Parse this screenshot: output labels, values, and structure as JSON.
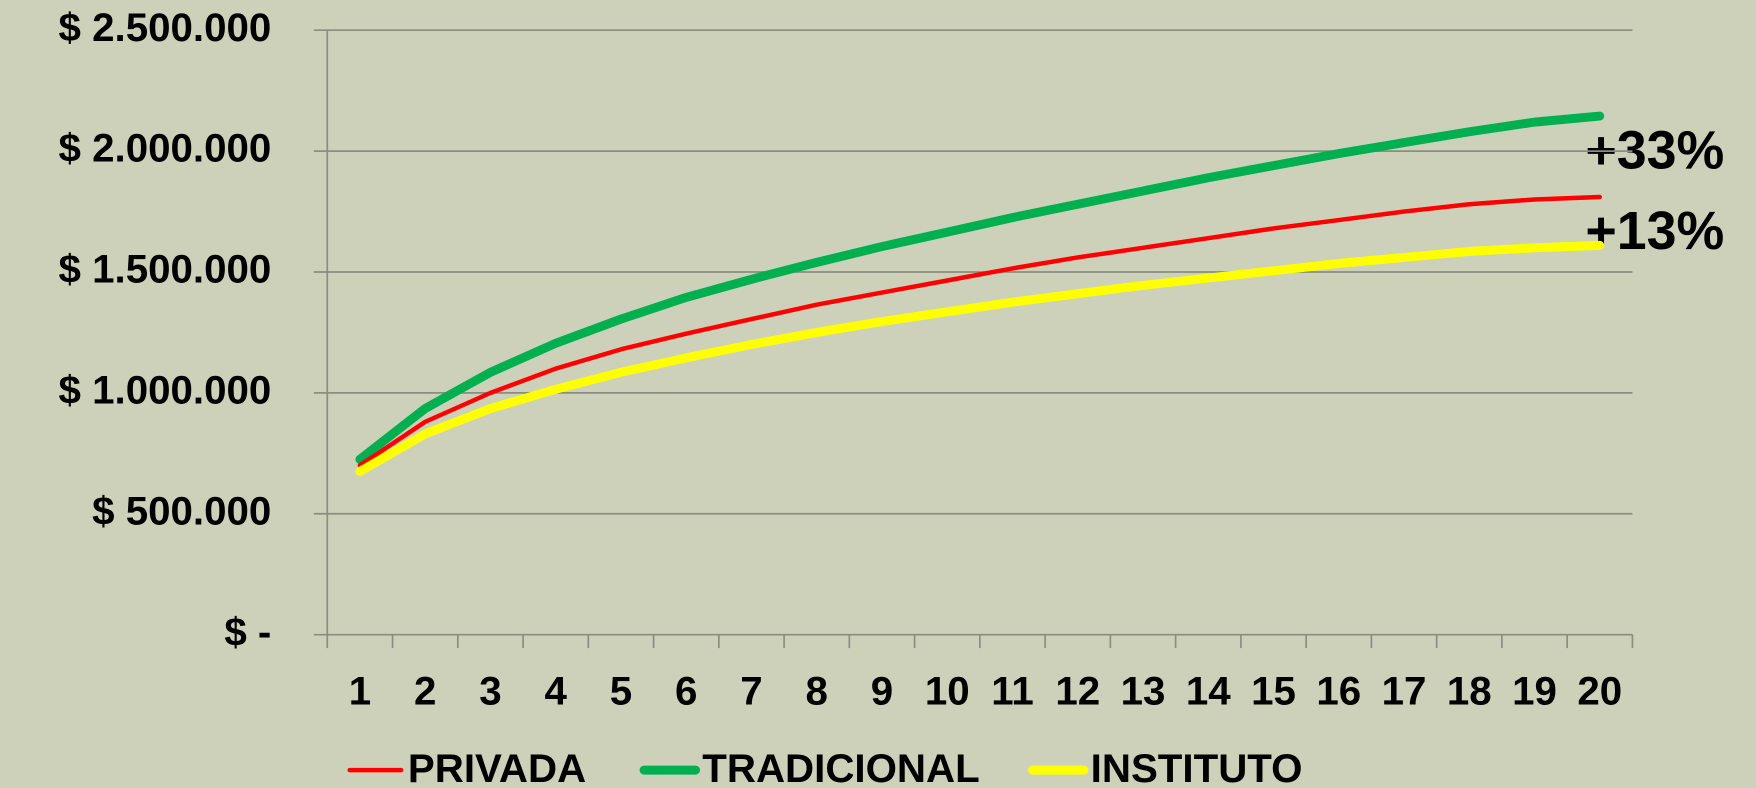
{
  "chart_data": {
    "type": "line",
    "categories": [
      "1",
      "2",
      "3",
      "4",
      "5",
      "6",
      "7",
      "8",
      "9",
      "10",
      "11",
      "12",
      "13",
      "14",
      "15",
      "16",
      "17",
      "18",
      "19",
      "20"
    ],
    "series": [
      {
        "name": "PRIVADA",
        "color": "#ff0000",
        "values": [
          700000,
          880000,
          1000000,
          1100000,
          1180000,
          1245000,
          1305000,
          1365000,
          1415000,
          1465000,
          1515000,
          1560000,
          1600000,
          1640000,
          1680000,
          1715000,
          1750000,
          1780000,
          1800000,
          1810000
        ]
      },
      {
        "name": "TRADICIONAL",
        "color": "#00b050",
        "values": [
          725000,
          935000,
          1085000,
          1205000,
          1305000,
          1395000,
          1470000,
          1540000,
          1605000,
          1665000,
          1725000,
          1780000,
          1835000,
          1890000,
          1940000,
          1990000,
          2035000,
          2080000,
          2120000,
          2145000
        ]
      },
      {
        "name": "INSTITUTO",
        "color": "#ffff00",
        "values": [
          675000,
          830000,
          935000,
          1015000,
          1085000,
          1145000,
          1200000,
          1250000,
          1295000,
          1335000,
          1375000,
          1410000,
          1445000,
          1475000,
          1505000,
          1535000,
          1560000,
          1585000,
          1600000,
          1610000
        ]
      }
    ],
    "ylim": [
      0,
      2500000
    ],
    "yticks": [
      {
        "value": 0,
        "label": "$ -"
      },
      {
        "value": 500000,
        "label": "$ 500.000"
      },
      {
        "value": 1000000,
        "label": "$ 1.000.000"
      },
      {
        "value": 1500000,
        "label": "$ 1.500.000"
      },
      {
        "value": 2000000,
        "label": "$ 2.000.000"
      },
      {
        "value": 2500000,
        "label": "$ 2.500.000"
      }
    ],
    "grid": true,
    "legend": "bottom",
    "annotations": [
      "+33%",
      "+13%"
    ]
  }
}
